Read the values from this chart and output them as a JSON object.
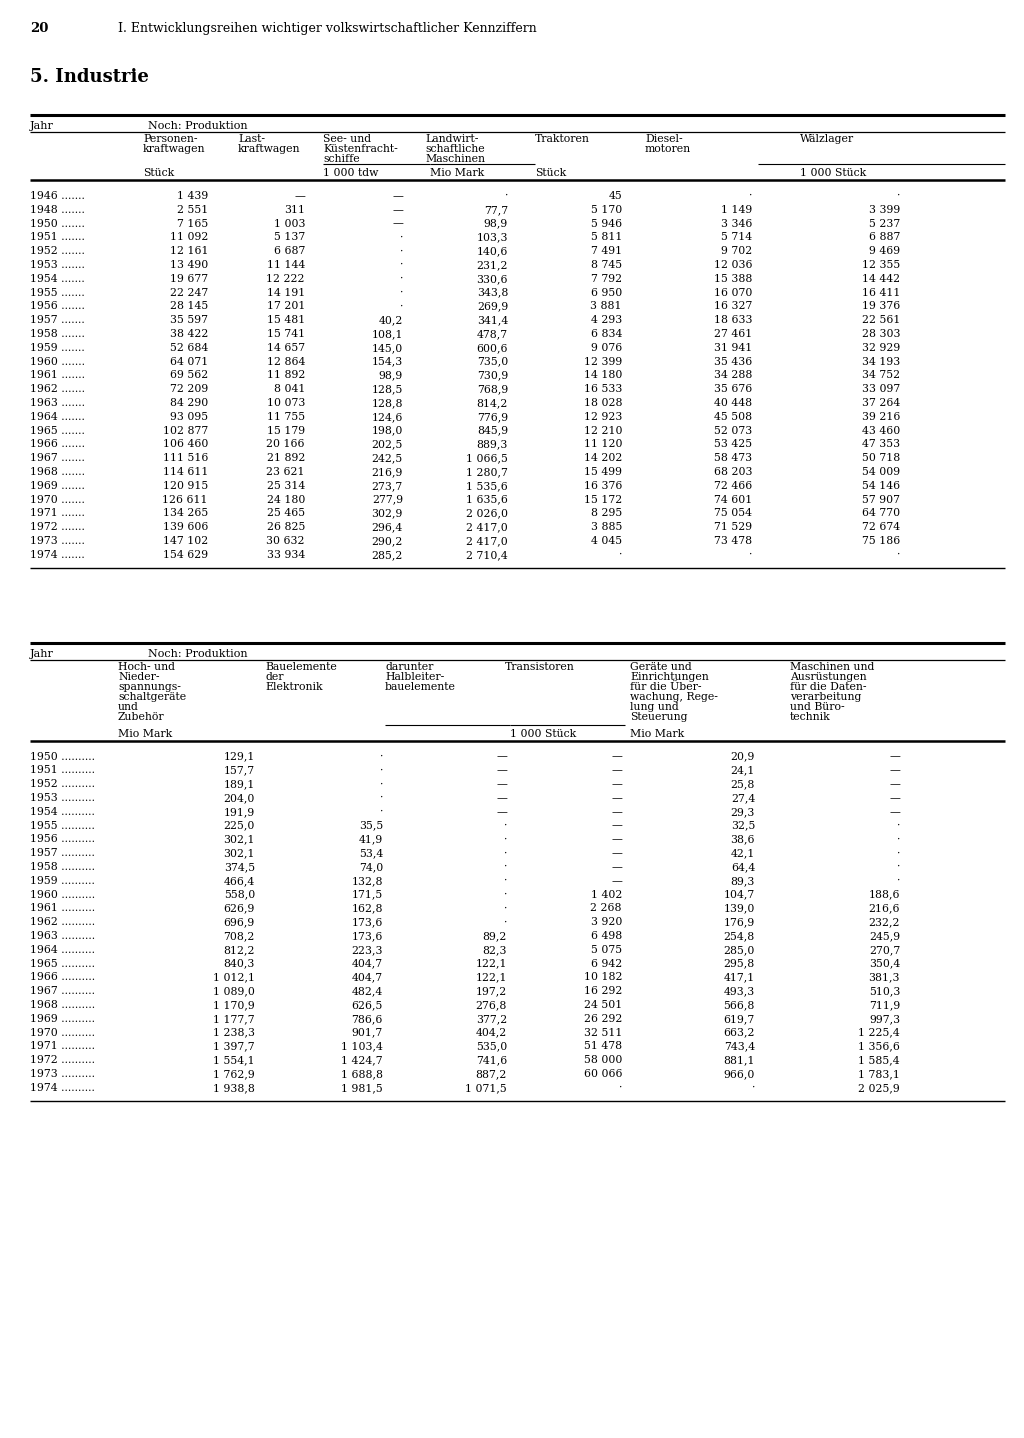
{
  "page_num": "20",
  "header": "I. Entwicklungsreihen wichtiger volkswirtschaftlicher Kennziffern",
  "section": "5. Industrie",
  "table1": {
    "rows": [
      [
        "1946 .......",
        "1 439",
        "—",
        "—",
        "·",
        "45",
        "·",
        "·"
      ],
      [
        "1948 .......",
        "2 551",
        "311",
        "—",
        "77,7",
        "5 170",
        "1 149",
        "3 399"
      ],
      [
        "1950 .......",
        "7 165",
        "1 003",
        "—",
        "98,9",
        "5 946",
        "3 346",
        "5 237"
      ],
      [
        "1951 .......",
        "11 092",
        "5 137",
        "·",
        "103,3",
        "5 811",
        "5 714",
        "6 887"
      ],
      [
        "1952 .......",
        "12 161",
        "6 687",
        "·",
        "140,6",
        "7 491",
        "9 702",
        "9 469"
      ],
      [
        "1953 .......",
        "13 490",
        "11 144",
        "·",
        "231,2",
        "8 745",
        "12 036",
        "12 355"
      ],
      [
        "1954 .......",
        "19 677",
        "12 222",
        "·",
        "330,6",
        "7 792",
        "15 388",
        "14 442"
      ],
      [
        "1955 .......",
        "22 247",
        "14 191",
        "·",
        "343,8",
        "6 950",
        "16 070",
        "16 411"
      ],
      [
        "1956 .......",
        "28 145",
        "17 201",
        "·",
        "269,9",
        "3 881",
        "16 327",
        "19 376"
      ],
      [
        "1957 .......",
        "35 597",
        "15 481",
        "40,2",
        "341,4",
        "4 293",
        "18 633",
        "22 561"
      ],
      [
        "1958 .......",
        "38 422",
        "15 741",
        "108,1",
        "478,7",
        "6 834",
        "27 461",
        "28 303"
      ],
      [
        "1959 .......",
        "52 684",
        "14 657",
        "145,0",
        "600,6",
        "9 076",
        "31 941",
        "32 929"
      ],
      [
        "1960 .......",
        "64 071",
        "12 864",
        "154,3",
        "735,0",
        "12 399",
        "35 436",
        "34 193"
      ],
      [
        "1961 .......",
        "69 562",
        "11 892",
        "98,9",
        "730,9",
        "14 180",
        "34 288",
        "34 752"
      ],
      [
        "1962 .......",
        "72 209",
        "8 041",
        "128,5",
        "768,9",
        "16 533",
        "35 676",
        "33 097"
      ],
      [
        "1963 .......",
        "84 290",
        "10 073",
        "128,8",
        "814,2",
        "18 028",
        "40 448",
        "37 264"
      ],
      [
        "1964 .......",
        "93 095",
        "11 755",
        "124,6",
        "776,9",
        "12 923",
        "45 508",
        "39 216"
      ],
      [
        "1965 .......",
        "102 877",
        "15 179",
        "198,0",
        "845,9",
        "12 210",
        "52 073",
        "43 460"
      ],
      [
        "1966 .......",
        "106 460",
        "20 166",
        "202,5",
        "889,3",
        "11 120",
        "53 425",
        "47 353"
      ],
      [
        "1967 .......",
        "111 516",
        "21 892",
        "242,5",
        "1 066,5",
        "14 202",
        "58 473",
        "50 718"
      ],
      [
        "1968 .......",
        "114 611",
        "23 621",
        "216,9",
        "1 280,7",
        "15 499",
        "68 203",
        "54 009"
      ],
      [
        "1969 .......",
        "120 915",
        "25 314",
        "273,7",
        "1 535,6",
        "16 376",
        "72 466",
        "54 146"
      ],
      [
        "1970 .......",
        "126 611",
        "24 180",
        "277,9",
        "1 635,6",
        "15 172",
        "74 601",
        "57 907"
      ],
      [
        "1971 .......",
        "134 265",
        "25 465",
        "302,9",
        "2 026,0",
        "8 295",
        "75 054",
        "64 770"
      ],
      [
        "1972 .......",
        "139 606",
        "26 825",
        "296,4",
        "2 417,0",
        "3 885",
        "71 529",
        "72 674"
      ],
      [
        "1973 .......",
        "147 102",
        "30 632",
        "290,2",
        "2 417,0",
        "4 045",
        "73 478",
        "75 186"
      ],
      [
        "1974 .......",
        "154 629",
        "33 934",
        "285,2",
        "2 710,4",
        "·",
        "·",
        "·"
      ]
    ]
  },
  "table2": {
    "rows": [
      [
        "1950 ..........",
        "129,1",
        "·",
        "—",
        "—",
        "20,9",
        "—"
      ],
      [
        "1951 ..........",
        "157,7",
        "·",
        "—",
        "—",
        "24,1",
        "—"
      ],
      [
        "1952 ..........",
        "189,1",
        "·",
        "—",
        "—",
        "25,8",
        "—"
      ],
      [
        "1953 ..........",
        "204,0",
        "·",
        "—",
        "—",
        "27,4",
        "—"
      ],
      [
        "1954 ..........",
        "191,9",
        "·",
        "—",
        "—",
        "29,3",
        "—"
      ],
      [
        "1955 ..........",
        "225,0",
        "35,5",
        "·",
        "—",
        "32,5",
        "·"
      ],
      [
        "1956 ..........",
        "302,1",
        "41,9",
        "·",
        "—",
        "38,6",
        "·"
      ],
      [
        "1957 ..........",
        "302,1",
        "53,4",
        "·",
        "—",
        "42,1",
        "·"
      ],
      [
        "1958 ..........",
        "374,5",
        "74,0",
        "·",
        "—",
        "64,4",
        "·"
      ],
      [
        "1959 ..........",
        "466,4",
        "132,8",
        "·",
        "—",
        "89,3",
        "·"
      ],
      [
        "1960 ..........",
        "558,0",
        "171,5",
        "·",
        "1 402",
        "104,7",
        "188,6"
      ],
      [
        "1961 ..........",
        "626,9",
        "162,8",
        "·",
        "2 268",
        "139,0",
        "216,6"
      ],
      [
        "1962 ..........",
        "696,9",
        "173,6",
        "·",
        "3 920",
        "176,9",
        "232,2"
      ],
      [
        "1963 ..........",
        "708,2",
        "173,6",
        "89,2",
        "6 498",
        "254,8",
        "245,9"
      ],
      [
        "1964 ..........",
        "812,2",
        "223,3",
        "82,3",
        "5 075",
        "285,0",
        "270,7"
      ],
      [
        "1965 ..........",
        "840,3",
        "404,7",
        "122,1",
        "6 942",
        "295,8",
        "350,4"
      ],
      [
        "1966 ..........",
        "1 012,1",
        "404,7",
        "122,1",
        "10 182",
        "417,1",
        "381,3"
      ],
      [
        "1967 ..........",
        "1 089,0",
        "482,4",
        "197,2",
        "16 292",
        "493,3",
        "510,3"
      ],
      [
        "1968 ..........",
        "1 170,9",
        "626,5",
        "276,8",
        "24 501",
        "566,8",
        "711,9"
      ],
      [
        "1969 ..........",
        "1 177,7",
        "786,6",
        "377,2",
        "26 292",
        "619,7",
        "997,3"
      ],
      [
        "1970 ..........",
        "1 238,3",
        "901,7",
        "404,2",
        "32 511",
        "663,2",
        "1 225,4"
      ],
      [
        "1971 ..........",
        "1 397,7",
        "1 103,4",
        "535,0",
        "51 478",
        "743,4",
        "1 356,6"
      ],
      [
        "1972 ..........",
        "1 554,1",
        "1 424,7",
        "741,6",
        "58 000",
        "881,1",
        "1 585,4"
      ],
      [
        "1973 ..........",
        "1 762,9",
        "1 688,8",
        "887,2",
        "60 066",
        "966,0",
        "1 783,1"
      ],
      [
        "1974 ..........",
        "1 938,8",
        "1 981,5",
        "1 071,5",
        "·",
        "·",
        "2 025,9"
      ]
    ]
  }
}
